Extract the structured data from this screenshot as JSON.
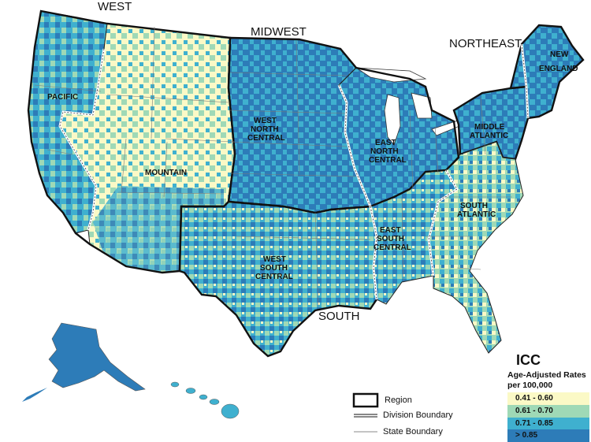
{
  "regions": {
    "west": "WEST",
    "midwest": "MIDWEST",
    "northeast": "NORTHEAST",
    "south": "SOUTH"
  },
  "divisions": {
    "pacific": "PACIFIC",
    "mountain": "MOUNTAIN",
    "wnc_1": "WEST",
    "wnc_2": "NORTH",
    "wnc_3": "CENTRAL",
    "enc_1": "EAST",
    "enc_2": "NORTH",
    "enc_3": "CENTRAL",
    "ne_1": "NEW",
    "ne_2": "ENGLAND",
    "ma_1": "MIDDLE",
    "ma_2": "ATLANTIC",
    "wsc_1": "WEST",
    "wsc_2": "SOUTH",
    "wsc_3": "CENTRAL",
    "esc_1": "EAST",
    "esc_2": "SOUTH",
    "esc_3": "CENTRAL",
    "sa_1": "SOUTH",
    "sa_2": "ATLANTIC"
  },
  "legend": {
    "title": "ICC",
    "subtitle_1": "Age-Adjusted Rates",
    "subtitle_2": "per 100,000",
    "classes": [
      {
        "label": "0.41 - 0.60",
        "color": "#fbf9c6"
      },
      {
        "label": "0.61 - 0.70",
        "color": "#9fd9b6"
      },
      {
        "label": "0.71 - 0.85",
        "color": "#3fb0cf"
      },
      {
        "label": "> 0.85",
        "color": "#2d7cb8"
      }
    ]
  },
  "boundary_key": {
    "region": "Region",
    "division": "Division Boundary",
    "state": "State Boundary"
  }
}
